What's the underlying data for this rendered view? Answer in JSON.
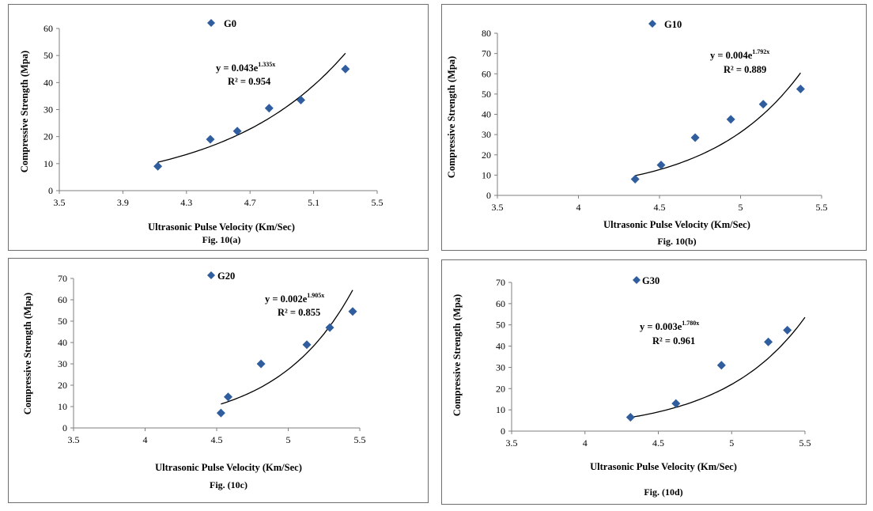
{
  "chart_data": [
    {
      "type": "scatter",
      "caption": "Fig. 10(a)",
      "xlabel": "Ultrasonic Pulse Velocity (Km/Sec)",
      "ylabel": "Compressive Strength (Mpa)",
      "xlim": [
        3.5,
        5.5
      ],
      "ylim": [
        0,
        60
      ],
      "xticks": [
        "3.5",
        "3.9",
        "4.3",
        "4.7",
        "5.1",
        "5.5"
      ],
      "yticks": [
        "0",
        "10",
        "20",
        "30",
        "40",
        "50",
        "60"
      ],
      "legend": "top",
      "marker_color": "#2f5d9e",
      "series": [
        {
          "name": "G0",
          "x": [
            4.12,
            4.45,
            4.62,
            4.82,
            5.02,
            5.3
          ],
          "y": [
            9,
            19,
            22,
            30.5,
            33.5,
            45
          ]
        }
      ],
      "trendline": {
        "a": 0.043,
        "b": 1.335,
        "x_range": [
          4.12,
          5.3
        ]
      },
      "equation": "y = 0.043e",
      "equation_exp": "1.335x",
      "r2": "R² = 0.954"
    },
    {
      "type": "scatter",
      "caption": "Fig. 10(b)",
      "xlabel": "Ultrasonic Pulse Velocity (Km/Sec)",
      "ylabel": "Compressive Strength (Mpa)",
      "xlim": [
        3.5,
        5.5
      ],
      "ylim": [
        0,
        80
      ],
      "xticks": [
        "3.5",
        "4",
        "4.5",
        "5",
        "5.5"
      ],
      "yticks": [
        "0",
        "10",
        "20",
        "30",
        "40",
        "50",
        "60",
        "70",
        "80"
      ],
      "legend": "top",
      "marker_color": "#2f5d9e",
      "series": [
        {
          "name": "G10",
          "x": [
            4.35,
            4.51,
            4.72,
            4.94,
            5.14,
            5.37
          ],
          "y": [
            8,
            15,
            28.5,
            37.5,
            45,
            52.5
          ]
        }
      ],
      "trendline": {
        "a": 0.004,
        "b": 1.792,
        "x_range": [
          4.35,
          5.37
        ]
      },
      "equation": "y = 0.004e",
      "equation_exp": "1.792x",
      "r2": "R² = 0.889"
    },
    {
      "type": "scatter",
      "caption": "Fig. (10c)",
      "xlabel": "Ultrasonic Pulse Velocity (Km/Sec)",
      "ylabel": "Compressive Strength (Mpa)",
      "xlim": [
        3.5,
        5.5
      ],
      "ylim": [
        0,
        70
      ],
      "xticks": [
        "3.5",
        "4",
        "4.5",
        "5",
        "5.5"
      ],
      "yticks": [
        "0",
        "10",
        "20",
        "30",
        "40",
        "50",
        "60",
        "70"
      ],
      "legend": "top",
      "marker_color": "#2f5d9e",
      "series": [
        {
          "name": "G20",
          "x": [
            4.53,
            4.58,
            4.81,
            5.13,
            5.29,
            5.45
          ],
          "y": [
            7,
            14.5,
            30,
            39,
            47,
            54.5
          ]
        }
      ],
      "trendline": {
        "a": 0.002,
        "b": 1.905,
        "x_range": [
          4.53,
          5.45
        ]
      },
      "equation": "y = 0.002e",
      "equation_exp": "1.905x",
      "r2": "R² = 0.855"
    },
    {
      "type": "scatter",
      "caption": "Fig. (10d)",
      "xlabel": "Ultrasonic Pulse Velocity (Km/Sec)",
      "ylabel": "Compressive Strength (Mpa)",
      "xlim": [
        3.5,
        5.5
      ],
      "ylim": [
        0,
        70
      ],
      "xticks": [
        "3.5",
        "4",
        "4.5",
        "5",
        "5.5"
      ],
      "yticks": [
        "0",
        "10",
        "20",
        "30",
        "40",
        "50",
        "60",
        "70"
      ],
      "legend": "top",
      "marker_color": "#2f5d9e",
      "series": [
        {
          "name": "G30",
          "x": [
            4.31,
            4.62,
            4.93,
            5.25,
            5.38
          ],
          "y": [
            6.5,
            13,
            31,
            42,
            47.5
          ]
        }
      ],
      "trendline": {
        "a": 0.003,
        "b": 1.78,
        "x_range": [
          4.31,
          5.5
        ]
      },
      "equation": "y = 0.003e",
      "equation_exp": "1.780x",
      "r2": "R² = 0.961"
    }
  ]
}
